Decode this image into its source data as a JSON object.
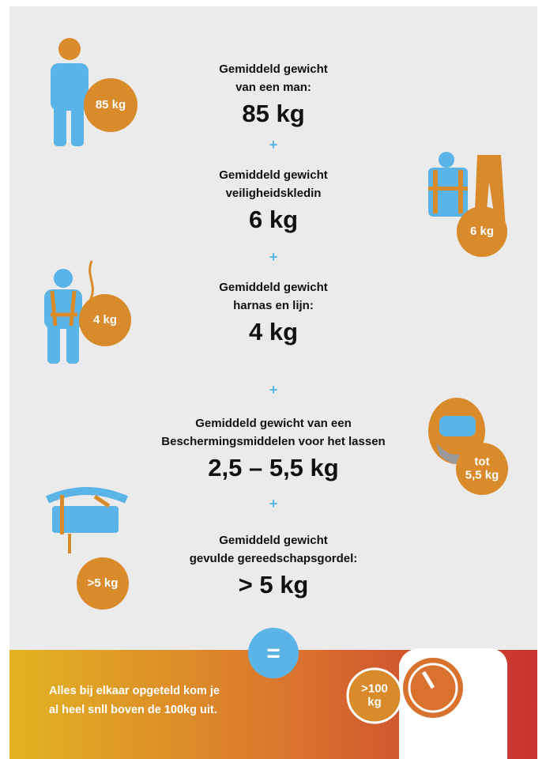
{
  "items": [
    {
      "label": [
        "Gemiddeld gewicht",
        "van een man:"
      ],
      "amount": "85 kg",
      "badge": [
        "85 kg"
      ]
    },
    {
      "label": [
        "Gemiddeld gewicht",
        "veiligheidskledin"
      ],
      "amount": "6 kg",
      "badge": [
        "6 kg"
      ]
    },
    {
      "label": [
        "Gemiddeld gewicht",
        "harnas en lijn:"
      ],
      "amount": "4 kg",
      "badge": [
        "4 kg"
      ]
    },
    {
      "label": [
        "Gemiddeld gewicht van een",
        "Beschermingsmiddelen voor het lassen"
      ],
      "amount": "2,5 – 5,5 kg",
      "badge": [
        "tot",
        "5,5 kg"
      ]
    },
    {
      "label": [
        "Gemiddeld gewicht",
        "gevulde gereedschapsgordel:"
      ],
      "amount": "> 5 kg",
      "badge": [
        ">5 kg"
      ]
    }
  ],
  "plus": "+",
  "equals": "=",
  "footer": {
    "text": [
      "Alles bij elkaar opgeteld kom je",
      "al heel snll boven de 100kg uit."
    ],
    "badge": [
      ">100",
      "kg"
    ]
  }
}
